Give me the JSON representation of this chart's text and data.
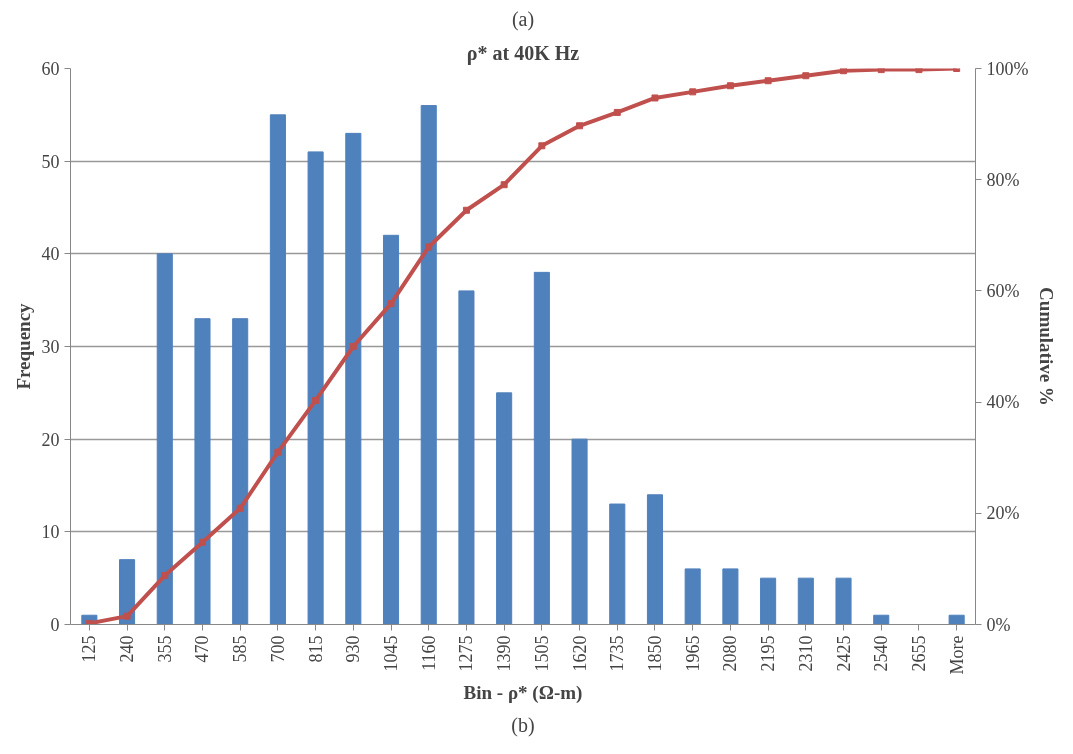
{
  "chart_data": {
    "type": "bar",
    "title": "ρ* at 40K Hz",
    "xlabel": "Bin - ρ* (Ω-m)",
    "ylabel": "Frequency",
    "y2label": "Cumulative %",
    "annotations": [
      "(a)",
      "(b)"
    ],
    "categories": [
      "125",
      "240",
      "355",
      "470",
      "585",
      "700",
      "815",
      "930",
      "1045",
      "1160",
      "1275",
      "1390",
      "1505",
      "1620",
      "1735",
      "1850",
      "1965",
      "2080",
      "2195",
      "2310",
      "2425",
      "2540",
      "2655",
      "More"
    ],
    "series": [
      {
        "color": "#4f81bd",
        "values": [
          1,
          7,
          40,
          33,
          33,
          55,
          51,
          53,
          42,
          56,
          36,
          25,
          38,
          20,
          13,
          14,
          6,
          6,
          5,
          5,
          5,
          1,
          0,
          1
        ]
      },
      {
        "type": "line",
        "axis": "y2",
        "color": "#c0504d",
        "marker": "square",
        "values": [
          0.2,
          1.5,
          8.8,
          14.8,
          20.9,
          31.0,
          40.3,
          50.0,
          57.7,
          67.9,
          74.5,
          79.1,
          86.1,
          89.7,
          92.1,
          94.7,
          95.8,
          96.9,
          97.8,
          98.7,
          99.6,
          99.8,
          99.8,
          100
        ]
      }
    ],
    "ylim": [
      0,
      60
    ],
    "yticks": [
      0,
      10,
      20,
      30,
      40,
      50,
      60
    ],
    "y2lim": [
      0,
      100
    ],
    "y2ticks": [
      {
        "value": 0,
        "label": "0%"
      },
      {
        "value": 20,
        "label": "20%"
      },
      {
        "value": 40,
        "label": "40%"
      },
      {
        "value": 60,
        "label": "60%"
      },
      {
        "value": 80,
        "label": "80%"
      },
      {
        "value": 100,
        "label": "100%"
      }
    ],
    "grid": "y"
  }
}
